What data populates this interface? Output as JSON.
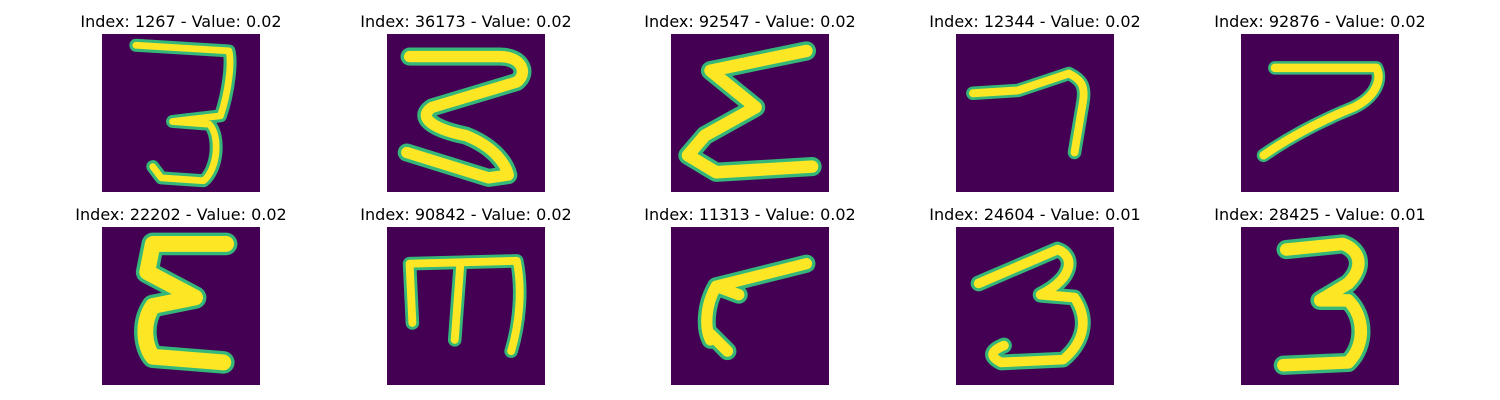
{
  "colors": {
    "background": "#440154",
    "stroke_core": "#fde725",
    "stroke_edge": "#35b779",
    "stroke_fringe": "#21918c"
  },
  "panels": [
    {
      "title": "Index: 1267 - Value: 0.02",
      "glyph": "digit-3-open-top"
    },
    {
      "title": "Index: 36173 - Value: 0.02",
      "glyph": "zigzag-3"
    },
    {
      "title": "Index: 92547 - Value: 0.02",
      "glyph": "sigma"
    },
    {
      "title": "Index: 12344 - Value: 0.02",
      "glyph": "digit-7-short"
    },
    {
      "title": "Index: 92876 - Value: 0.02",
      "glyph": "digit-7-long"
    },
    {
      "title": "Index: 22202 - Value: 0.02",
      "glyph": "letter-e-bold"
    },
    {
      "title": "Index: 90842 - Value: 0.02",
      "glyph": "letter-m-rotated"
    },
    {
      "title": "Index: 11313 - Value: 0.02",
      "glyph": "digit-7-reversed"
    },
    {
      "title": "Index: 24604 - Value: 0.01",
      "glyph": "digit-3-italic"
    },
    {
      "title": "Index: 28425 - Value: 0.01",
      "glyph": "digit-3-bold"
    }
  ]
}
